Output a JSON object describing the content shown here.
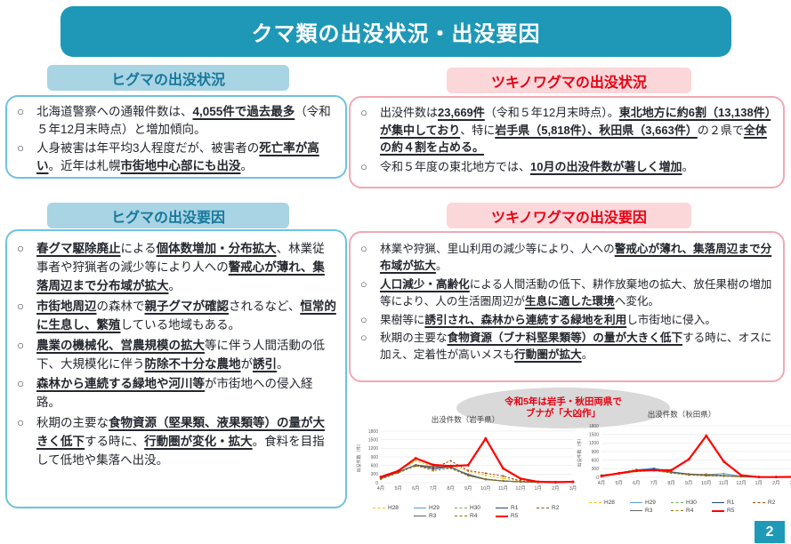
{
  "ui": {
    "bullet": "○",
    "page_number": "2"
  },
  "title": "クマ類の出没状況・出没要因",
  "colors": {
    "banner": "#1e98b6",
    "blue_header_bg": "#a9d4e4",
    "blue_header_text": "#17789b",
    "blue_box_border": "#6fc2df",
    "pink_header_bg": "#fbd7da",
    "pink_box_border": "#f0a9b4",
    "red_accent": "#e60012",
    "callout_bg": "#d9d9d9",
    "page_badge": "#1e9ab8"
  },
  "sections": {
    "higuma_status": {
      "header": "ヒグマの出没状況",
      "bullets": [
        [
          {
            "t": "北海道警察への通報件数は、"
          },
          {
            "t": "4,055件で過去最多",
            "b": true,
            "u": true
          },
          {
            "t": "（令和５年12月末時点）と増加傾向。"
          }
        ],
        [
          {
            "t": "人身被害は年平均3人程度だが、被害者の"
          },
          {
            "t": "死亡率が高い",
            "b": true,
            "u": true
          },
          {
            "t": "。近年は札幌"
          },
          {
            "t": "市街地中心部にも出没",
            "b": true,
            "u": true
          },
          {
            "t": "。"
          }
        ]
      ]
    },
    "tsukinowa_status": {
      "header": "ツキノワグマの出没状況",
      "bullets": [
        [
          {
            "t": "出没件数は"
          },
          {
            "t": "23,669件",
            "b": true,
            "u": true
          },
          {
            "t": "（令和５年12月末時点）。"
          },
          {
            "t": "東北地方に約6割（13,138件）が集中しており",
            "b": true,
            "u": true
          },
          {
            "t": "、特に"
          },
          {
            "t": "岩手県（5,818件）、秋田県（3,663件）",
            "b": true,
            "u": true
          },
          {
            "t": "の２県で"
          },
          {
            "t": "全体の約４割を占める。",
            "b": true,
            "u": true
          }
        ],
        [
          {
            "t": "令和５年度の東北地方では、"
          },
          {
            "t": "10月の出没件数が著しく増加",
            "b": true,
            "u": true
          },
          {
            "t": "。"
          }
        ]
      ]
    },
    "higuma_cause": {
      "header": "ヒグマの出没要因",
      "bullets": [
        [
          {
            "t": "春グマ駆除廃止",
            "b": true,
            "u": true
          },
          {
            "t": "による"
          },
          {
            "t": "個体数増加・分布拡大",
            "b": true,
            "u": true
          },
          {
            "t": "、林業従事者や狩猟者の減少等により人への"
          },
          {
            "t": "警戒心が薄れ、集落周辺まで分布域が拡大",
            "b": true,
            "u": true
          },
          {
            "t": "。"
          }
        ],
        [
          {
            "t": "市街地周辺",
            "b": true,
            "u": true
          },
          {
            "t": "の森林で"
          },
          {
            "t": "親子グマが確認",
            "b": true,
            "u": true
          },
          {
            "t": "されるなど、"
          },
          {
            "t": "恒常的に生息し、繁殖",
            "b": true,
            "u": true
          },
          {
            "t": "している地域もある。"
          }
        ],
        [
          {
            "t": "農業の機械化、営農規模の拡大",
            "b": true,
            "u": true
          },
          {
            "t": "等に伴う人間活動の低下、大規模化に伴う"
          },
          {
            "t": "防除不十分な農地",
            "b": true,
            "u": true
          },
          {
            "t": "が"
          },
          {
            "t": "誘引",
            "b": true,
            "u": true
          },
          {
            "t": "。"
          }
        ],
        [
          {
            "t": "森林から連続する緑地や河川等",
            "b": true,
            "u": true
          },
          {
            "t": "が市街地への侵入経路。"
          }
        ],
        [
          {
            "t": "秋期の主要な"
          },
          {
            "t": "食物資源（堅果類、液果類等）の量が大きく低下",
            "b": true,
            "u": true
          },
          {
            "t": "する時に、"
          },
          {
            "t": "行動圏が変化・拡大",
            "b": true,
            "u": true
          },
          {
            "t": "。食料を目指して低地や集落へ出没。"
          }
        ]
      ]
    },
    "tsukinowa_cause": {
      "header": "ツキノワグマの出没要因",
      "bullets": [
        [
          {
            "t": "林業や狩猟、里山利用の減少等により、人への"
          },
          {
            "t": "警戒心が薄れ、集落周辺まで分布域が拡大",
            "b": true,
            "u": true
          },
          {
            "t": "。"
          }
        ],
        [
          {
            "t": "人口減少・高齢化",
            "b": true,
            "u": true
          },
          {
            "t": "による人間活動の低下、耕作放棄地の拡大、放任果樹の増加等により、人の生活圏周辺が"
          },
          {
            "t": "生息に適した環境",
            "b": true,
            "u": true
          },
          {
            "t": "へ変化。"
          }
        ],
        [
          {
            "t": "果樹等に"
          },
          {
            "t": "誘引され、森林から連続する緑地を利用",
            "b": true,
            "u": true
          },
          {
            "t": "し市街地に侵入。"
          }
        ],
        [
          {
            "t": "秋期の主要な"
          },
          {
            "t": "食物資源（ブナ科堅果類等）の量が大きく低下",
            "b": true,
            "u": true
          },
          {
            "t": "する時に、オスに加え、定着性が高いメスも"
          },
          {
            "t": "行動圏が拡大",
            "b": true,
            "u": true
          },
          {
            "t": "。"
          }
        ]
      ]
    }
  },
  "callout": {
    "line1": "令和5年は岩手・秋田両県で",
    "line2": "ブナが「大凶作」"
  },
  "charts": [
    {
      "type": "line",
      "title": "出没件数（岩手県）",
      "ylabel": "出没件数（件）",
      "ylim": [
        0,
        1800
      ],
      "ytick_step": 300,
      "grid": true,
      "legend_position": "bottom",
      "x": [
        "4月",
        "5月",
        "6月",
        "7月",
        "8月",
        "9月",
        "10月",
        "11月",
        "12月",
        "1月",
        "2月",
        "3月"
      ],
      "series": [
        {
          "name": "H28",
          "color": "#ffc000",
          "dash": true,
          "values": [
            150,
            420,
            760,
            560,
            600,
            400,
            250,
            150,
            60,
            20,
            15,
            25
          ]
        },
        {
          "name": "H29",
          "color": "#5b9bd5",
          "dash": false,
          "values": [
            160,
            380,
            620,
            540,
            520,
            300,
            120,
            60,
            30,
            15,
            10,
            20
          ]
        },
        {
          "name": "H30",
          "color": "#70ad47",
          "dash": true,
          "values": [
            140,
            360,
            610,
            500,
            550,
            280,
            130,
            70,
            30,
            15,
            10,
            20
          ]
        },
        {
          "name": "R1",
          "color": "#264478",
          "dash": false,
          "values": [
            150,
            370,
            620,
            480,
            550,
            260,
            110,
            60,
            30,
            15,
            10,
            20
          ]
        },
        {
          "name": "R2",
          "color": "#9e480e",
          "dash": true,
          "values": [
            130,
            350,
            580,
            520,
            760,
            420,
            330,
            230,
            60,
            20,
            15,
            25
          ]
        },
        {
          "name": "R3",
          "color": "#636363",
          "dash": false,
          "values": [
            150,
            370,
            620,
            560,
            540,
            280,
            120,
            60,
            30,
            15,
            10,
            20
          ]
        },
        {
          "name": "R4",
          "color": "#997300",
          "dash": true,
          "values": [
            120,
            340,
            600,
            420,
            500,
            240,
            110,
            60,
            30,
            15,
            10,
            20
          ]
        },
        {
          "name": "R5",
          "color": "#ff0000",
          "dash": false,
          "emph": true,
          "values": [
            200,
            410,
            850,
            620,
            580,
            610,
            1540,
            500,
            140,
            30,
            20,
            30
          ]
        }
      ]
    },
    {
      "type": "line",
      "title": "出没件数（秋田県）",
      "ylabel": "出没件数（件）",
      "ylim": [
        0,
        1800
      ],
      "ytick_step": 300,
      "grid": true,
      "legend_position": "bottom",
      "x": [
        "4月",
        "5月",
        "6月",
        "7月",
        "8月",
        "9月",
        "10月",
        "11月",
        "12月",
        "1月",
        "2月",
        "3月"
      ],
      "series": [
        {
          "name": "H28",
          "color": "#ffc000",
          "dash": true,
          "values": [
            60,
            120,
            200,
            230,
            160,
            90,
            60,
            40,
            20,
            10,
            10,
            15
          ]
        },
        {
          "name": "H29",
          "color": "#5b9bd5",
          "dash": false,
          "values": [
            70,
            140,
            260,
            320,
            190,
            120,
            90,
            130,
            40,
            15,
            10,
            15
          ]
        },
        {
          "name": "H30",
          "color": "#70ad47",
          "dash": true,
          "values": [
            80,
            150,
            280,
            250,
            170,
            100,
            70,
            50,
            25,
            10,
            10,
            15
          ]
        },
        {
          "name": "R1",
          "color": "#264478",
          "dash": false,
          "values": [
            70,
            130,
            240,
            290,
            180,
            110,
            80,
            60,
            30,
            10,
            10,
            15
          ]
        },
        {
          "name": "R2",
          "color": "#9e480e",
          "dash": true,
          "values": [
            60,
            130,
            220,
            260,
            150,
            80,
            60,
            50,
            25,
            10,
            10,
            15
          ]
        },
        {
          "name": "R3",
          "color": "#636363",
          "dash": false,
          "values": [
            70,
            140,
            230,
            250,
            170,
            100,
            70,
            60,
            30,
            10,
            10,
            15
          ]
        },
        {
          "name": "R4",
          "color": "#997300",
          "dash": true,
          "values": [
            60,
            120,
            210,
            240,
            150,
            90,
            110,
            70,
            30,
            10,
            10,
            15
          ]
        },
        {
          "name": "R5",
          "color": "#ff0000",
          "dash": false,
          "emph": true,
          "values": [
            40,
            140,
            230,
            250,
            250,
            630,
            1450,
            550,
            70,
            10,
            10,
            15
          ]
        }
      ]
    }
  ]
}
